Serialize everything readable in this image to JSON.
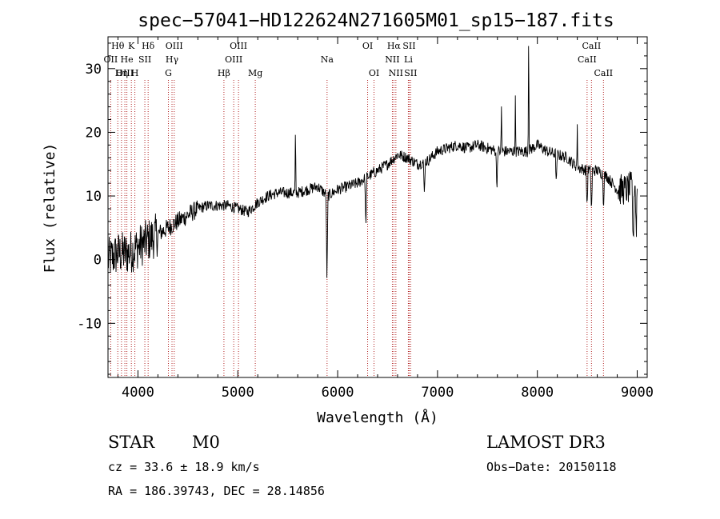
{
  "chart_data": {
    "type": "line",
    "title": "spec−57041−HD122624N271605M01_sp15−187.fits",
    "xlabel": "Wavelength (Å)",
    "ylabel": "Flux (relative)",
    "xlim": [
      3700,
      9100
    ],
    "ylim": [
      -18.5,
      35
    ],
    "x_ticks": [
      4000,
      5000,
      6000,
      7000,
      8000,
      9000
    ],
    "y_ticks": [
      -10,
      0,
      10,
      20,
      30
    ],
    "spectrum_anchors": {
      "x": [
        3700,
        3800,
        3900,
        4000,
        4100,
        4200,
        4300,
        4400,
        4500,
        4600,
        4700,
        4800,
        4900,
        5000,
        5100,
        5200,
        5300,
        5400,
        5500,
        5600,
        5700,
        5800,
        5900,
        6000,
        6100,
        6200,
        6300,
        6400,
        6500,
        6600,
        6700,
        6800,
        6900,
        7000,
        7100,
        7200,
        7300,
        7400,
        7500,
        7600,
        7700,
        7800,
        7900,
        8000,
        8100,
        8200,
        8300,
        8400,
        8500,
        8600,
        8700,
        8800,
        8900,
        9000
      ],
      "y": [
        0,
        1,
        1,
        2,
        3,
        4,
        5,
        6,
        7,
        8,
        8.5,
        8.5,
        8.5,
        8,
        7.5,
        9,
        10,
        10.5,
        10.5,
        10.5,
        11,
        11.5,
        10,
        11,
        11.5,
        12,
        13,
        14,
        15,
        16.5,
        16,
        15,
        15.5,
        17,
        17.5,
        18,
        17.5,
        18,
        17.5,
        17,
        17,
        17,
        17,
        18,
        17,
        16.5,
        16,
        14.5,
        14,
        14,
        13,
        11,
        11,
        12
      ]
    },
    "spectral_lines": [
      {
        "label": "Hθ",
        "wavelength": 3798,
        "row": 0
      },
      {
        "label": "OII",
        "wavelength": 3727,
        "row": 1
      },
      {
        "label": "OIII",
        "wavelength": 3869,
        "row": 2
      },
      {
        "label": "He",
        "wavelength": 3889,
        "row": 1
      },
      {
        "label": "K",
        "wavelength": 3934,
        "row": 0
      },
      {
        "label": "Hη",
        "wavelength": 3835,
        "row": 2
      },
      {
        "label": "H",
        "wavelength": 3969,
        "row": 2
      },
      {
        "label": "SII",
        "wavelength": 4069,
        "row": 1
      },
      {
        "label": "Hδ",
        "wavelength": 4102,
        "row": 0
      },
      {
        "label": "OIII",
        "wavelength": 4363,
        "row": 0
      },
      {
        "label": "Hγ",
        "wavelength": 4341,
        "row": 1
      },
      {
        "label": "G",
        "wavelength": 4305,
        "row": 2
      },
      {
        "label": "Hβ",
        "wavelength": 4861,
        "row": 2
      },
      {
        "label": "OIII",
        "wavelength": 5007,
        "row": 0
      },
      {
        "label": "OIII",
        "wavelength": 4959,
        "row": 1
      },
      {
        "label": "Mg",
        "wavelength": 5175,
        "row": 2
      },
      {
        "label": "Na",
        "wavelength": 5894,
        "row": 1
      },
      {
        "label": "OI",
        "wavelength": 6300,
        "row": 0
      },
      {
        "label": "OI",
        "wavelength": 6364,
        "row": 2
      },
      {
        "label": "Hα",
        "wavelength": 6563,
        "row": 0
      },
      {
        "label": "NII",
        "wavelength": 6548,
        "row": 1
      },
      {
        "label": "NII",
        "wavelength": 6583,
        "row": 2
      },
      {
        "label": "SII",
        "wavelength": 6716,
        "row": 0
      },
      {
        "label": "Li",
        "wavelength": 6708,
        "row": 1
      },
      {
        "label": "SII",
        "wavelength": 6731,
        "row": 2
      },
      {
        "label": "CaII",
        "wavelength": 8542,
        "row": 0
      },
      {
        "label": "CaII",
        "wavelength": 8498,
        "row": 1
      },
      {
        "label": "CaII",
        "wavelength": 8662,
        "row": 2
      }
    ]
  },
  "info": {
    "class": "STAR",
    "subclass": "M0",
    "survey": "LAMOST DR3",
    "cz": "cz = 33.6 ± 18.9 km/s",
    "obs_date": "Obs−Date: 20150118",
    "coords": "RA = 186.39743, DEC =  28.14856"
  },
  "colors": {
    "line_marker": "#b22222",
    "spectrum": "#000000"
  }
}
